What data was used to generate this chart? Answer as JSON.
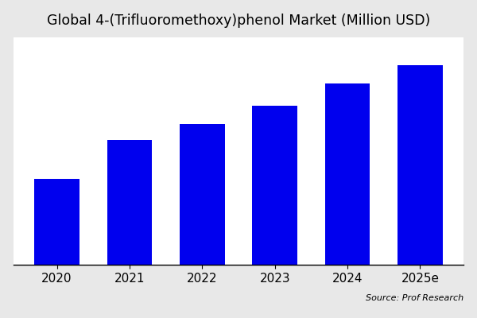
{
  "title": "Global 4-(Trifluoromethoxy)phenol Market (Million USD)",
  "categories": [
    "2020",
    "2021",
    "2022",
    "2023",
    "2024",
    "2025e"
  ],
  "values": [
    38,
    55,
    62,
    70,
    80,
    88
  ],
  "bar_color": "#0000EE",
  "plot_bg_color": "#ffffff",
  "outer_bg_color": "#e8e8e8",
  "source_text": "Source: Prof Research",
  "title_fontsize": 12.5,
  "tick_fontsize": 11,
  "ylim": [
    0,
    100
  ]
}
